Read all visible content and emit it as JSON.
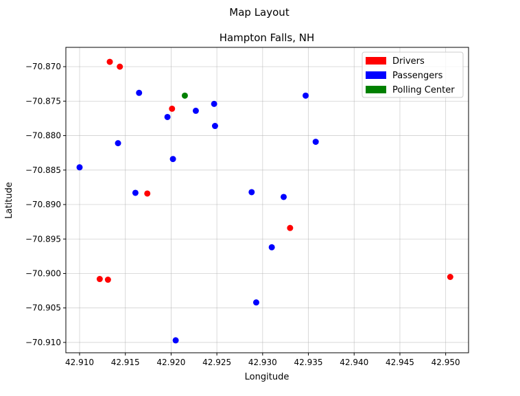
{
  "chart_data": {
    "type": "scatter",
    "suptitle": "Map Layout",
    "title": "Hampton Falls, NH",
    "xlabel": "Longitude",
    "ylabel": "Latitude",
    "xlim": [
      42.9085,
      42.9525
    ],
    "ylim": [
      -70.9115,
      -70.8672
    ],
    "xticks": [
      42.91,
      42.915,
      42.92,
      42.925,
      42.93,
      42.935,
      42.94,
      42.945,
      42.95
    ],
    "yticks": [
      -70.87,
      -70.875,
      -70.88,
      -70.885,
      -70.89,
      -70.895,
      -70.9,
      -70.905,
      -70.91
    ],
    "xtick_labels": [
      "42.910",
      "42.915",
      "42.920",
      "42.925",
      "42.930",
      "42.935",
      "42.940",
      "42.945",
      "42.950"
    ],
    "ytick_labels": [
      "−70.870",
      "−70.875",
      "−70.880",
      "−70.885",
      "−70.890",
      "−70.895",
      "−70.900",
      "−70.905",
      "−70.910"
    ],
    "grid": true,
    "legend_position": "top-right",
    "series": [
      {
        "name": "Drivers",
        "color": "#ff0000",
        "points": [
          [
            42.9133,
            -70.8693
          ],
          [
            42.9144,
            -70.87
          ],
          [
            42.9201,
            -70.8761
          ],
          [
            42.9174,
            -70.8884
          ],
          [
            42.933,
            -70.8934
          ],
          [
            42.9122,
            -70.9008
          ],
          [
            42.9131,
            -70.9009
          ],
          [
            42.9505,
            -70.9005
          ]
        ]
      },
      {
        "name": "Passengers",
        "color": "#0000ff",
        "points": [
          [
            42.9165,
            -70.8738
          ],
          [
            42.9196,
            -70.8773
          ],
          [
            42.9227,
            -70.8764
          ],
          [
            42.9247,
            -70.8754
          ],
          [
            42.9248,
            -70.8786
          ],
          [
            42.9347,
            -70.8742
          ],
          [
            42.9358,
            -70.8809
          ],
          [
            42.9142,
            -70.8811
          ],
          [
            42.91,
            -70.8846
          ],
          [
            42.9202,
            -70.8834
          ],
          [
            42.9161,
            -70.8883
          ],
          [
            42.9288,
            -70.8882
          ],
          [
            42.9323,
            -70.8889
          ],
          [
            42.931,
            -70.8962
          ],
          [
            42.9293,
            -70.9042
          ],
          [
            42.9205,
            -70.9097
          ]
        ]
      },
      {
        "name": "Polling Center",
        "color": "#008000",
        "points": [
          [
            42.9215,
            -70.8742
          ]
        ]
      }
    ]
  }
}
